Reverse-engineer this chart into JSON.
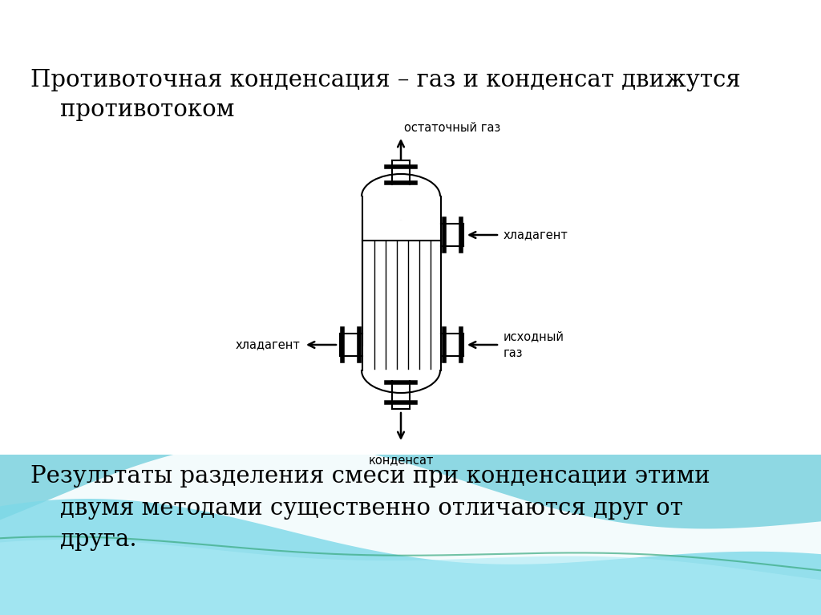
{
  "title_line1": "Противоточная конденсация – газ и конденсат движутся",
  "title_line2": "    противотоком",
  "bottom_text_line1": "Результаты разделения смеси при конденсации этими",
  "bottom_text_line2": "    двумя методами существенно отличаются друг от",
  "bottom_text_line3": "    друга.",
  "label_top": "остаточный газ",
  "label_right_top": "хладагент",
  "label_right_bottom_1": "исходный",
  "label_right_bottom_2": "газ",
  "label_left_bottom": "хладагент",
  "label_bottom": "конденсат",
  "line_color": "#000000",
  "text_color": "#000000",
  "wave_color1": "#5ec8d8",
  "wave_color2": "#80d8e8",
  "wave_color3": "#a0e4f0",
  "wave_white": "#ffffff"
}
